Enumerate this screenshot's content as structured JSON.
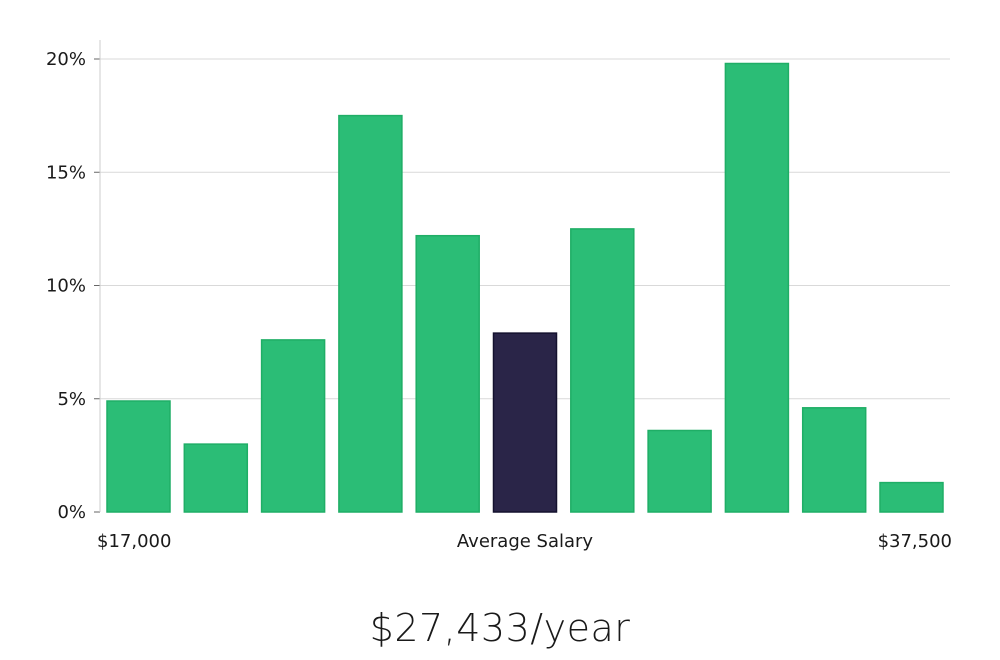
{
  "chart_data": {
    "type": "bar",
    "title": "",
    "xlabel": "Average Salary",
    "ylabel": "",
    "x_range_labels": {
      "min": "$17,000",
      "max": "$37,500"
    },
    "y_ticks": [
      "0%",
      "5%",
      "10%",
      "15%",
      "20%"
    ],
    "y_tick_values": [
      0,
      5,
      10,
      15,
      20
    ],
    "ylim": [
      0,
      20.8
    ],
    "values": [
      4.9,
      3.0,
      7.6,
      17.5,
      12.2,
      7.9,
      12.5,
      3.6,
      19.8,
      4.6,
      1.3
    ],
    "highlight_index": 5,
    "colors": {
      "bar": "#2bbd76",
      "bar_edge": "#1fae66",
      "highlight": "#2a2548",
      "highlight_edge": "#14112e",
      "grid": "#d9d9d9",
      "axis": "#cccccc"
    },
    "gridlines": true
  },
  "summary": {
    "salary_text": "$27,433/year"
  }
}
